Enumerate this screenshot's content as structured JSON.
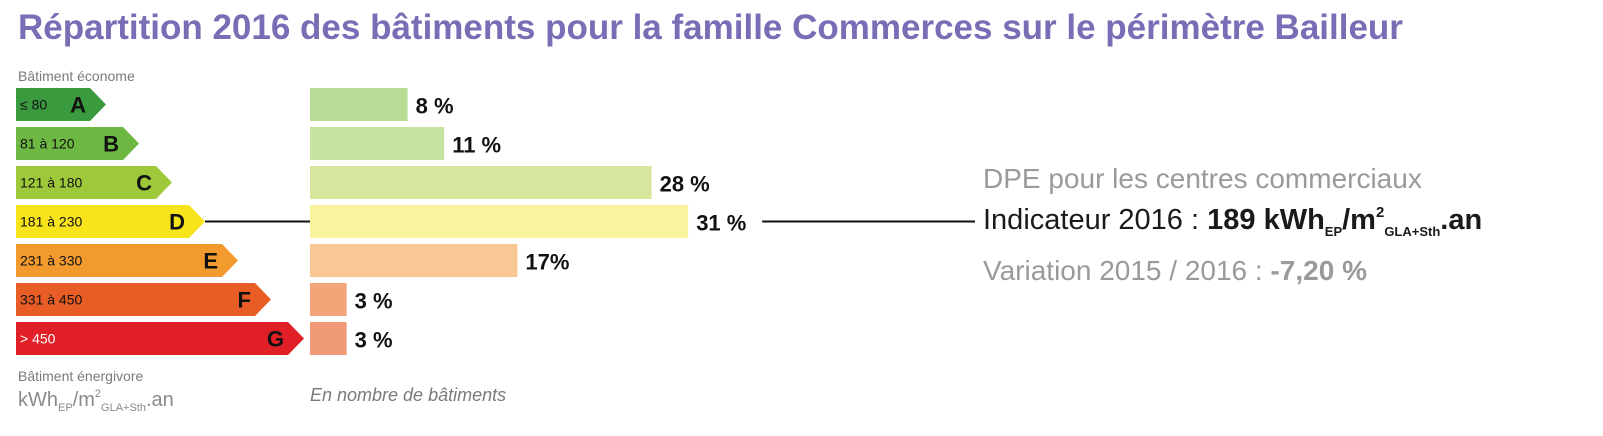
{
  "title": "Répartition 2016 des bâtiments pour la famille Commerces sur le périmètre Bailleur",
  "scale": {
    "top_label": "Bâtiment économe",
    "bottom_label": "Bâtiment énergivore",
    "unit": {
      "base": "kWh",
      "sub1": "EP",
      "mid": "/m",
      "sup": "2",
      "sub2": "GLA+Sth",
      "tail": ".an"
    }
  },
  "caption": "En nombre de bâtiments",
  "chart_data": {
    "type": "bar",
    "orientation": "horizontal",
    "categories": [
      "A",
      "B",
      "C",
      "D",
      "E",
      "F",
      "G"
    ],
    "ranges": [
      "≤ 80",
      "81 à 120",
      "121 à 180",
      "181 à 230",
      "231 à 330",
      "331 à 450",
      "> 450"
    ],
    "values": [
      8,
      11,
      28,
      31,
      17,
      3,
      3
    ],
    "value_labels": [
      "8 %",
      "11 %",
      "28 %",
      "31 %",
      "17%",
      "3 %",
      "3 %"
    ],
    "highlighted": "D",
    "label_colors": [
      "#3a9a3e",
      "#6cb843",
      "#9ec93b",
      "#f7e41b",
      "#f29a2e",
      "#e85c26",
      "#e01f26"
    ],
    "bar_colors": [
      "#b8dc96",
      "#c7e3a2",
      "#d6e69c",
      "#f9f3a0",
      "#f8c793",
      "#f3a478",
      "#f19a78"
    ]
  },
  "info": {
    "label": "DPE pour les centres commerciaux",
    "indicator_label": "Indicateur 2016 :",
    "indicator_value": "189",
    "indicator_unit": {
      "base": "kWh",
      "sub1": "EP",
      "mid": "/m",
      "sup": "2",
      "sub2": "GLA+Sth",
      "tail": ".an"
    },
    "variation_label": "Variation 2015 / 2016 :",
    "variation_value": "-7,20 %"
  }
}
